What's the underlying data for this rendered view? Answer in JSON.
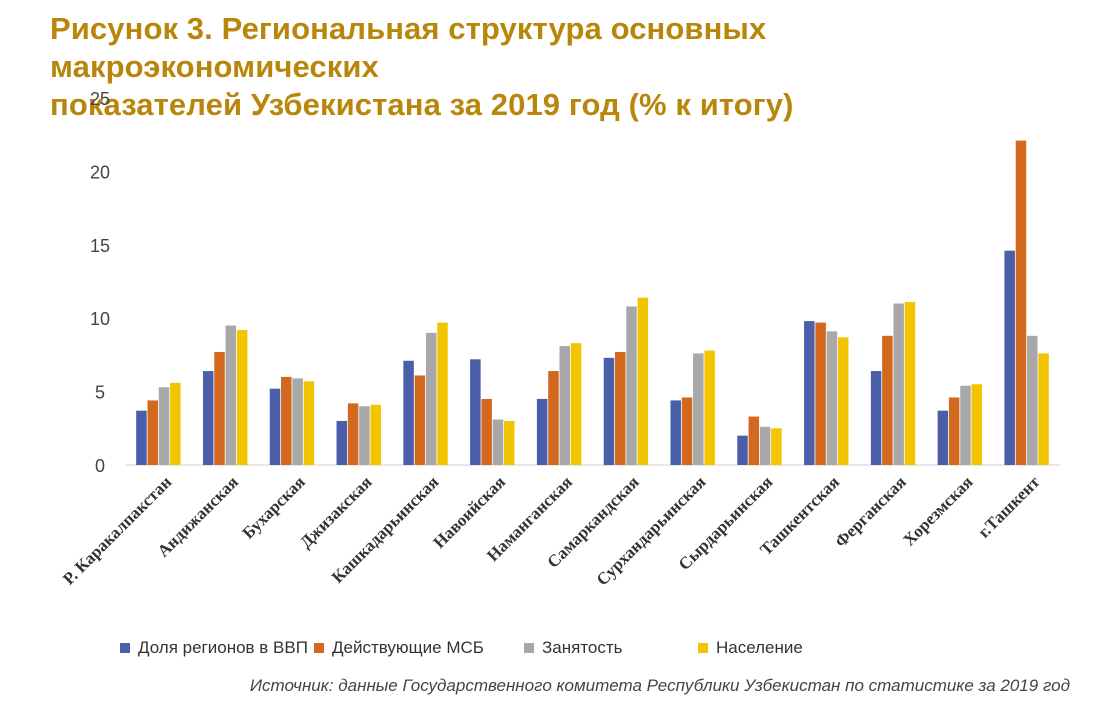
{
  "title": {
    "line1": "Рисунок 3. Региональная структура основных макроэкономических",
    "line2": "показателей Узбекистана за 2019 год (% к итогу)"
  },
  "source": "Источник: данные Государственного комитета Республики Узбекистан  по статистике за 2019 год",
  "chart_data": {
    "type": "bar",
    "categories": [
      "Р. Каракалпакстан",
      "Андижанская",
      "Бухарская",
      "Джизакская",
      "Кашкадарьинская",
      "Навоийская",
      "Наманганская",
      "Самаркандская",
      "Сурхандарьинская",
      "Сырдарьинская",
      "Ташкентская",
      "Ферганская",
      "Хорезмская",
      "г.Ташкент"
    ],
    "series": [
      {
        "name": "Доля регионов в ВВП",
        "color": "#4a5eaa",
        "values": [
          3.7,
          6.4,
          5.2,
          3.0,
          7.1,
          7.2,
          4.5,
          7.3,
          4.4,
          2.0,
          9.8,
          6.4,
          3.7,
          14.6
        ]
      },
      {
        "name": "Действующие МСБ",
        "color": "#d2691e",
        "values": [
          4.4,
          7.7,
          6.0,
          4.2,
          6.1,
          4.5,
          6.4,
          7.7,
          4.6,
          3.3,
          9.7,
          8.8,
          4.6,
          22.1
        ]
      },
      {
        "name": "Занятость",
        "color": "#a8a8a8",
        "values": [
          5.3,
          9.5,
          5.9,
          4.0,
          9.0,
          3.1,
          8.1,
          10.8,
          7.6,
          2.6,
          9.1,
          11.0,
          5.4,
          8.8
        ]
      },
      {
        "name": "Население",
        "color": "#f2c500",
        "values": [
          5.6,
          9.2,
          5.7,
          4.1,
          9.7,
          3.0,
          8.3,
          11.4,
          7.8,
          2.5,
          8.7,
          11.1,
          5.5,
          7.6
        ]
      }
    ],
    "ylim": [
      0,
      25
    ],
    "yticks": [
      0,
      5,
      10,
      15,
      20,
      25
    ],
    "ytick_labels": [
      "0",
      "5",
      "10",
      "15",
      "20",
      "25"
    ],
    "grid": false,
    "legend_position": "bottom"
  }
}
